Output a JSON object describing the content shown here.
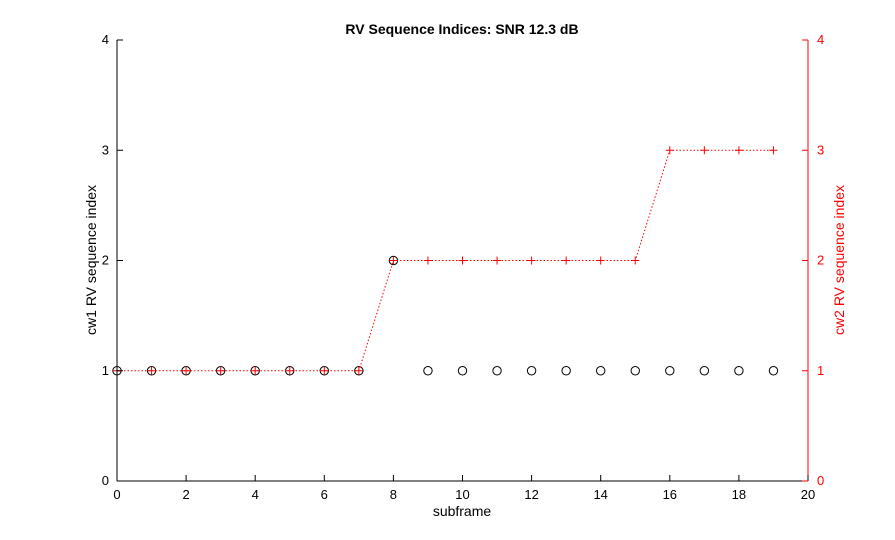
{
  "chart_data": {
    "type": "scatter",
    "title": "RV Sequence Indices: SNR 12.3 dB",
    "xlabel": "subframe",
    "ylabel_left": "cw1  RV sequence index",
    "ylabel_right": "cw2  RV sequence index",
    "xlim": [
      0,
      20
    ],
    "ylim": [
      0,
      4
    ],
    "x_ticks": [
      "0",
      "2",
      "4",
      "6",
      "8",
      "10",
      "12",
      "14",
      "16",
      "18",
      "20"
    ],
    "y_ticks": [
      "0",
      "1",
      "2",
      "3",
      "4"
    ],
    "grid": false,
    "colors": {
      "cw1": "#000000",
      "cw2": "#ff0000"
    },
    "series": [
      {
        "marker": "circle",
        "line": "none",
        "axis": "left",
        "x": [
          0,
          1,
          2,
          3,
          4,
          5,
          6,
          7,
          8,
          9,
          10,
          11,
          12,
          13,
          14,
          15,
          16,
          17,
          18,
          19
        ],
        "y": [
          1,
          1,
          1,
          1,
          1,
          1,
          1,
          1,
          2,
          1,
          1,
          1,
          1,
          1,
          1,
          1,
          1,
          1,
          1,
          1
        ]
      },
      {
        "marker": "plus",
        "line": "dotted",
        "axis": "right",
        "x": [
          0,
          1,
          2,
          3,
          4,
          5,
          6,
          7,
          8,
          9,
          10,
          11,
          12,
          13,
          14,
          15,
          16,
          17,
          18,
          19
        ],
        "y": [
          1,
          1,
          1,
          1,
          1,
          1,
          1,
          1,
          2,
          2,
          2,
          2,
          2,
          2,
          2,
          2,
          3,
          3,
          3,
          3
        ]
      }
    ]
  }
}
